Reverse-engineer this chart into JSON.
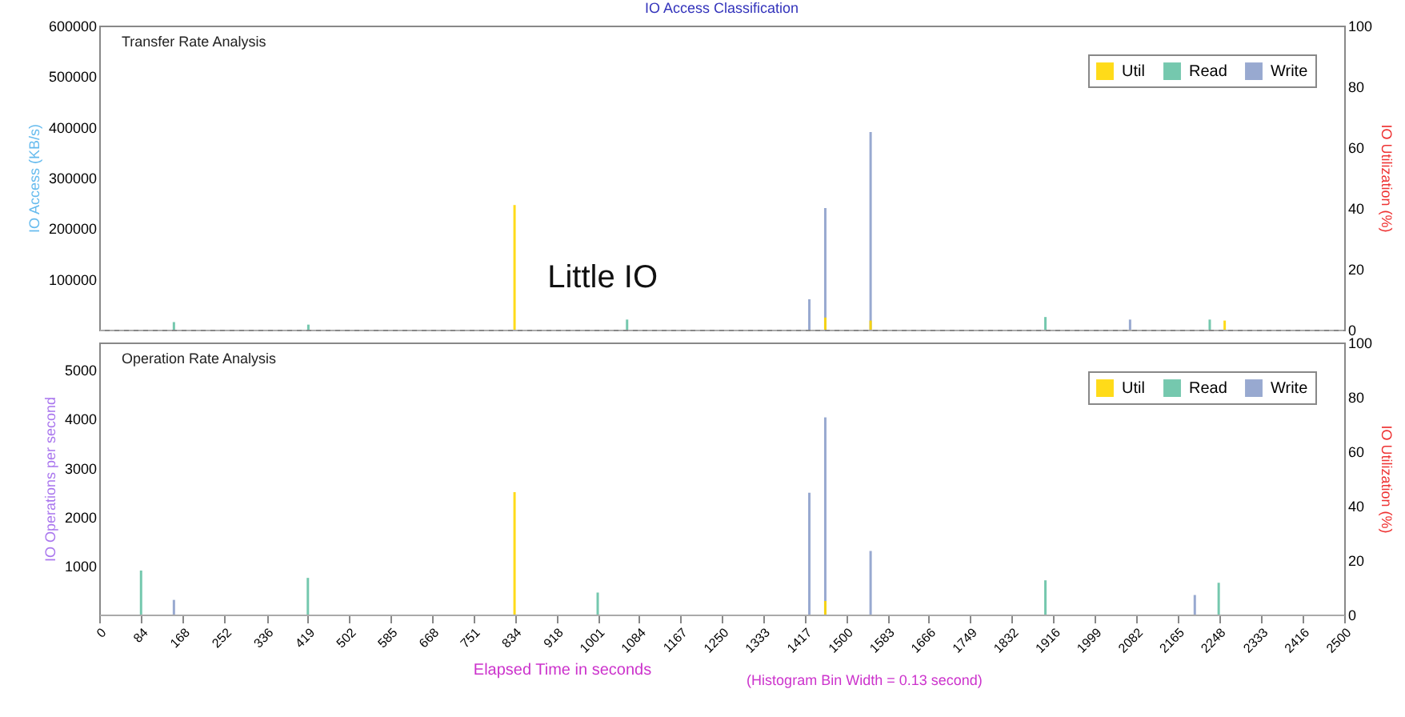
{
  "chart_data": [
    {
      "type": "bar",
      "title": "IO Access Classification",
      "subtitle": "Transfer Rate Analysis",
      "ylabel": "IO Access (KB/s)",
      "y2label": "IO Utilization (%)",
      "annotations": [
        "Little IO"
      ],
      "xlim": [
        0,
        2500
      ],
      "ylim": [
        0,
        600000
      ],
      "yticks": [
        100000,
        200000,
        300000,
        400000,
        500000,
        600000
      ],
      "y2lim": [
        0,
        100
      ],
      "y2ticks": [
        0,
        20,
        40,
        60,
        80,
        100
      ],
      "tick_labels": "y",
      "legend": "top right",
      "grid": false,
      "series": [
        {
          "name": "Util",
          "color": "#ffd700",
          "axis": "y2",
          "x": [
            834,
            1458,
            1549,
            2260
          ],
          "values": [
            41,
            4,
            3,
            3
          ]
        },
        {
          "name": "Read",
          "color": "#66c2a5",
          "x": [
            150,
            420,
            1060,
            1900,
            2230
          ],
          "values": [
            15000,
            10000,
            20000,
            25000,
            20000
          ]
        },
        {
          "name": "Write",
          "color": "#8da0cb",
          "x": [
            1426,
            1458,
            1549,
            2070
          ],
          "values": [
            60000,
            240000,
            390000,
            20000
          ]
        }
      ]
    },
    {
      "type": "bar",
      "subtitle": "Operation Rate Analysis",
      "xlabel": "Elapsed Time in seconds",
      "ylabel": "IO Operations per second",
      "y2label": "IO Utilization (%)",
      "annotations": [
        "(Histogram Bin Width = 0.13 second)"
      ],
      "xlim": [
        0,
        2500
      ],
      "ylim": [
        0,
        5560
      ],
      "yticks": [
        1000,
        2000,
        3000,
        4000,
        5000
      ],
      "y2lim": [
        0,
        100
      ],
      "y2ticks": [
        0,
        20,
        40,
        60,
        80,
        100
      ],
      "xticks": [
        0,
        84,
        168,
        252,
        336,
        419,
        502,
        585,
        668,
        751,
        834,
        918,
        1001,
        1084,
        1167,
        1250,
        1333,
        1417,
        1500,
        1583,
        1666,
        1749,
        1832,
        1916,
        1999,
        2082,
        2165,
        2248,
        2333,
        2416,
        2500
      ],
      "legend": "top right",
      "grid": false,
      "series": [
        {
          "name": "Util",
          "color": "#ffd700",
          "axis": "y2",
          "x": [
            834,
            1458
          ],
          "values": [
            45,
            5
          ]
        },
        {
          "name": "Read",
          "color": "#66c2a5",
          "x": [
            84,
            419,
            1001,
            1900,
            2248
          ],
          "values": [
            900,
            750,
            450,
            700,
            650
          ]
        },
        {
          "name": "Write",
          "color": "#8da0cb",
          "x": [
            150,
            1426,
            1458,
            1549,
            2200
          ],
          "values": [
            300,
            2490,
            4030,
            1300,
            400
          ]
        }
      ]
    }
  ]
}
